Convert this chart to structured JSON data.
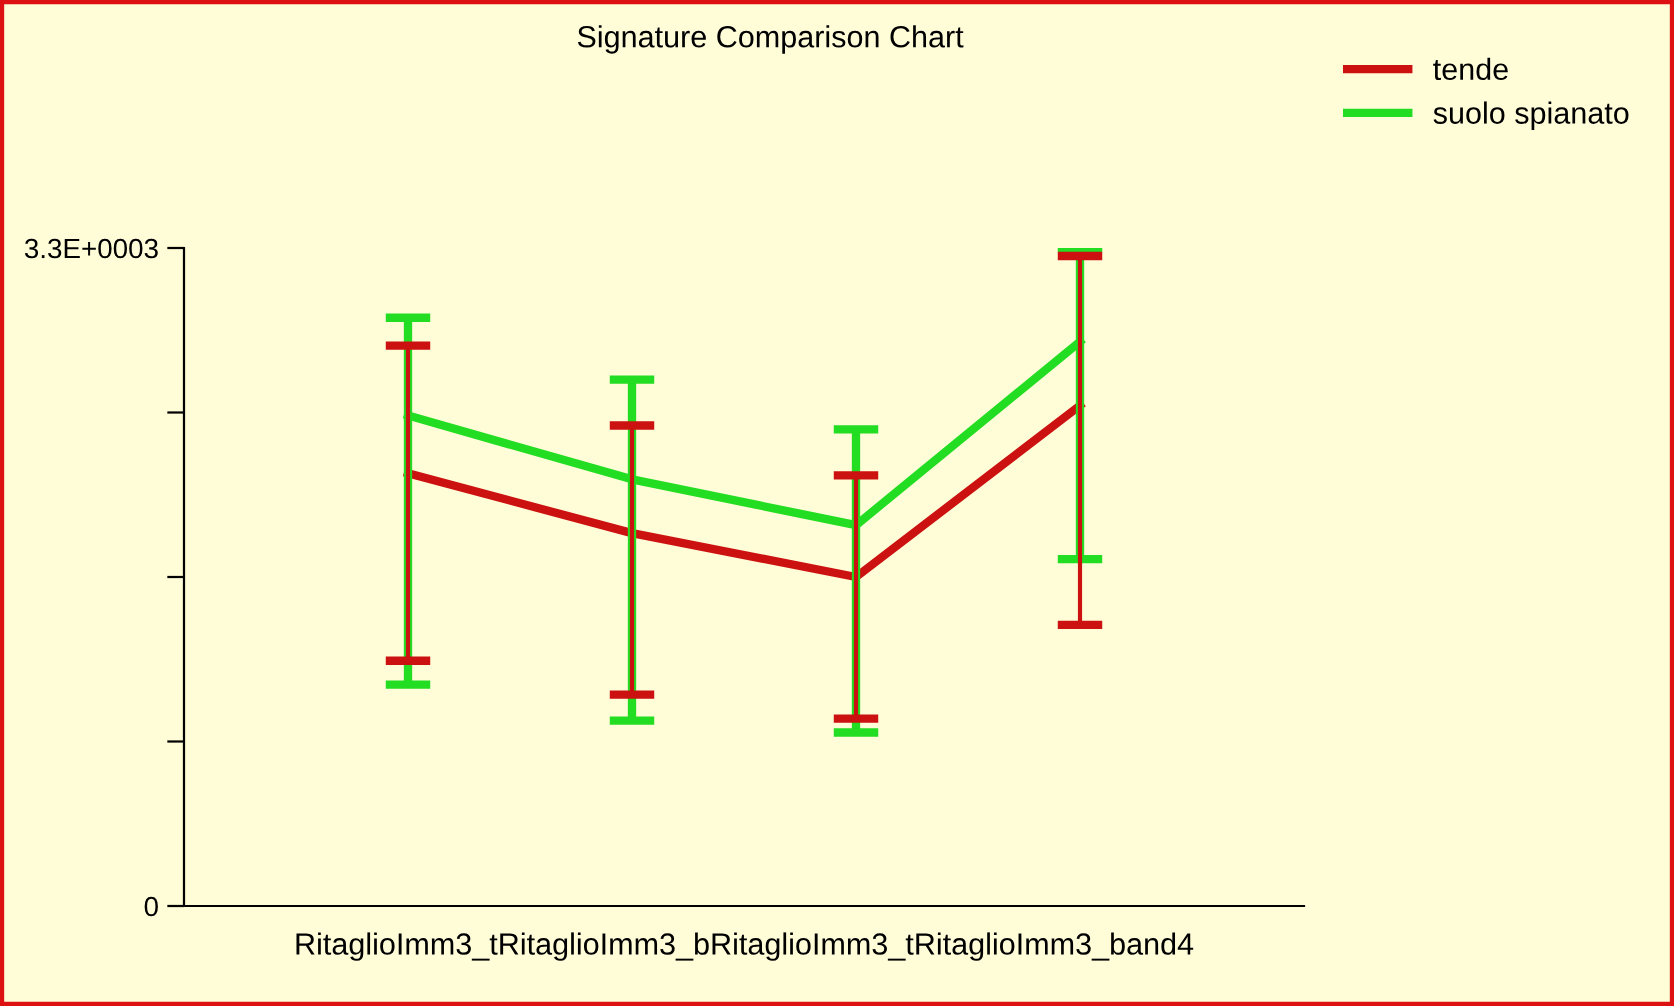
{
  "chart_data": {
    "type": "line",
    "title": "Signature Comparison Chart",
    "xlabel": "RitaglioImm3_tRitaglioImm3_bRitaglioImm3_tRitaglioImm3_band4",
    "categories": [
      null,
      null,
      null,
      null
    ],
    "series": [
      {
        "name": "tende",
        "color": "#cc1111",
        "values": [
          2170,
          1870,
          1650,
          2510
        ],
        "errors": [
          [
            1230,
            2810
          ],
          [
            1060,
            2410
          ],
          [
            940,
            2160
          ],
          [
            1410,
            3260
          ]
        ]
      },
      {
        "name": "suolo spianato",
        "color": "#22dd22",
        "values": [
          2460,
          2140,
          1910,
          2830
        ],
        "errors": [
          [
            1110,
            2950
          ],
          [
            930,
            2640
          ],
          [
            870,
            2390
          ],
          [
            1740,
            3300
          ]
        ]
      }
    ],
    "ylim": [
      0,
      3300
    ],
    "yticks": [
      {
        "value": 0,
        "label": "0"
      },
      {
        "value": 825,
        "label": null
      },
      {
        "value": 1650,
        "label": null
      },
      {
        "value": 2475,
        "label": null
      },
      {
        "value": 3300,
        "label": "3.3E+0003"
      }
    ],
    "grid": false,
    "legend": "top right",
    "marker": "none",
    "line_style": "solid"
  }
}
